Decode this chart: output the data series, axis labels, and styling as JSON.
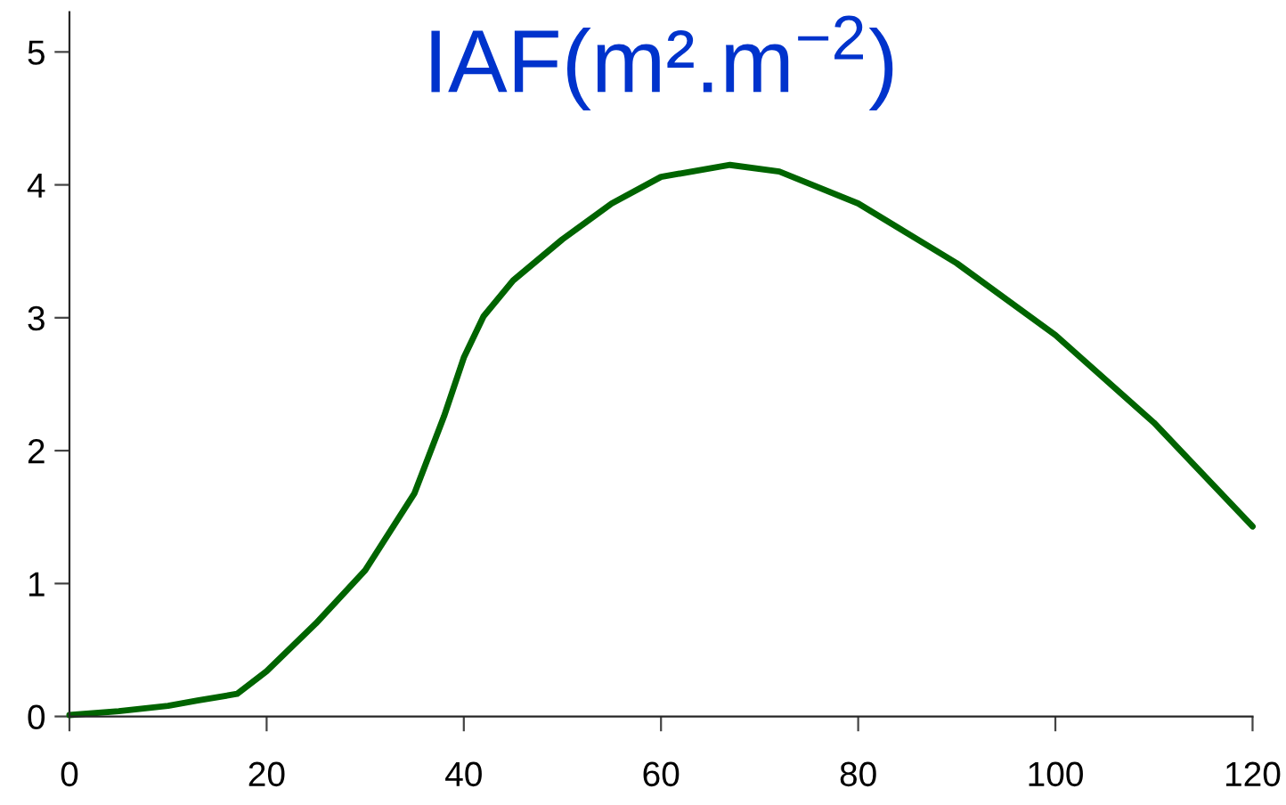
{
  "chart_data": {
    "type": "line",
    "title": "IAF(m².m$^{−2}$)",
    "x": [
      0,
      5,
      10,
      13,
      17,
      20,
      25,
      30,
      35,
      38,
      40,
      42,
      45,
      50,
      55,
      60,
      67,
      72,
      80,
      90,
      100,
      110,
      120
    ],
    "series": [
      {
        "color": "#006400",
        "values": [
          0.01,
          0.04,
          0.08,
          0.12,
          0.17,
          0.34,
          0.7,
          1.1,
          1.68,
          2.26,
          2.7,
          3.01,
          3.28,
          3.59,
          3.86,
          4.06,
          4.15,
          4.1,
          3.86,
          3.41,
          2.87,
          2.21,
          1.43
        ]
      }
    ],
    "xlim": [
      0,
      120
    ],
    "xticks": [
      0,
      20,
      40,
      60,
      80,
      100,
      120
    ],
    "ylim": [
      0,
      5.3
    ],
    "yticks": [
      0,
      1,
      2,
      3,
      4,
      5
    ],
    "grid": false,
    "legend": false,
    "marker": "none",
    "line_style": "solid"
  }
}
